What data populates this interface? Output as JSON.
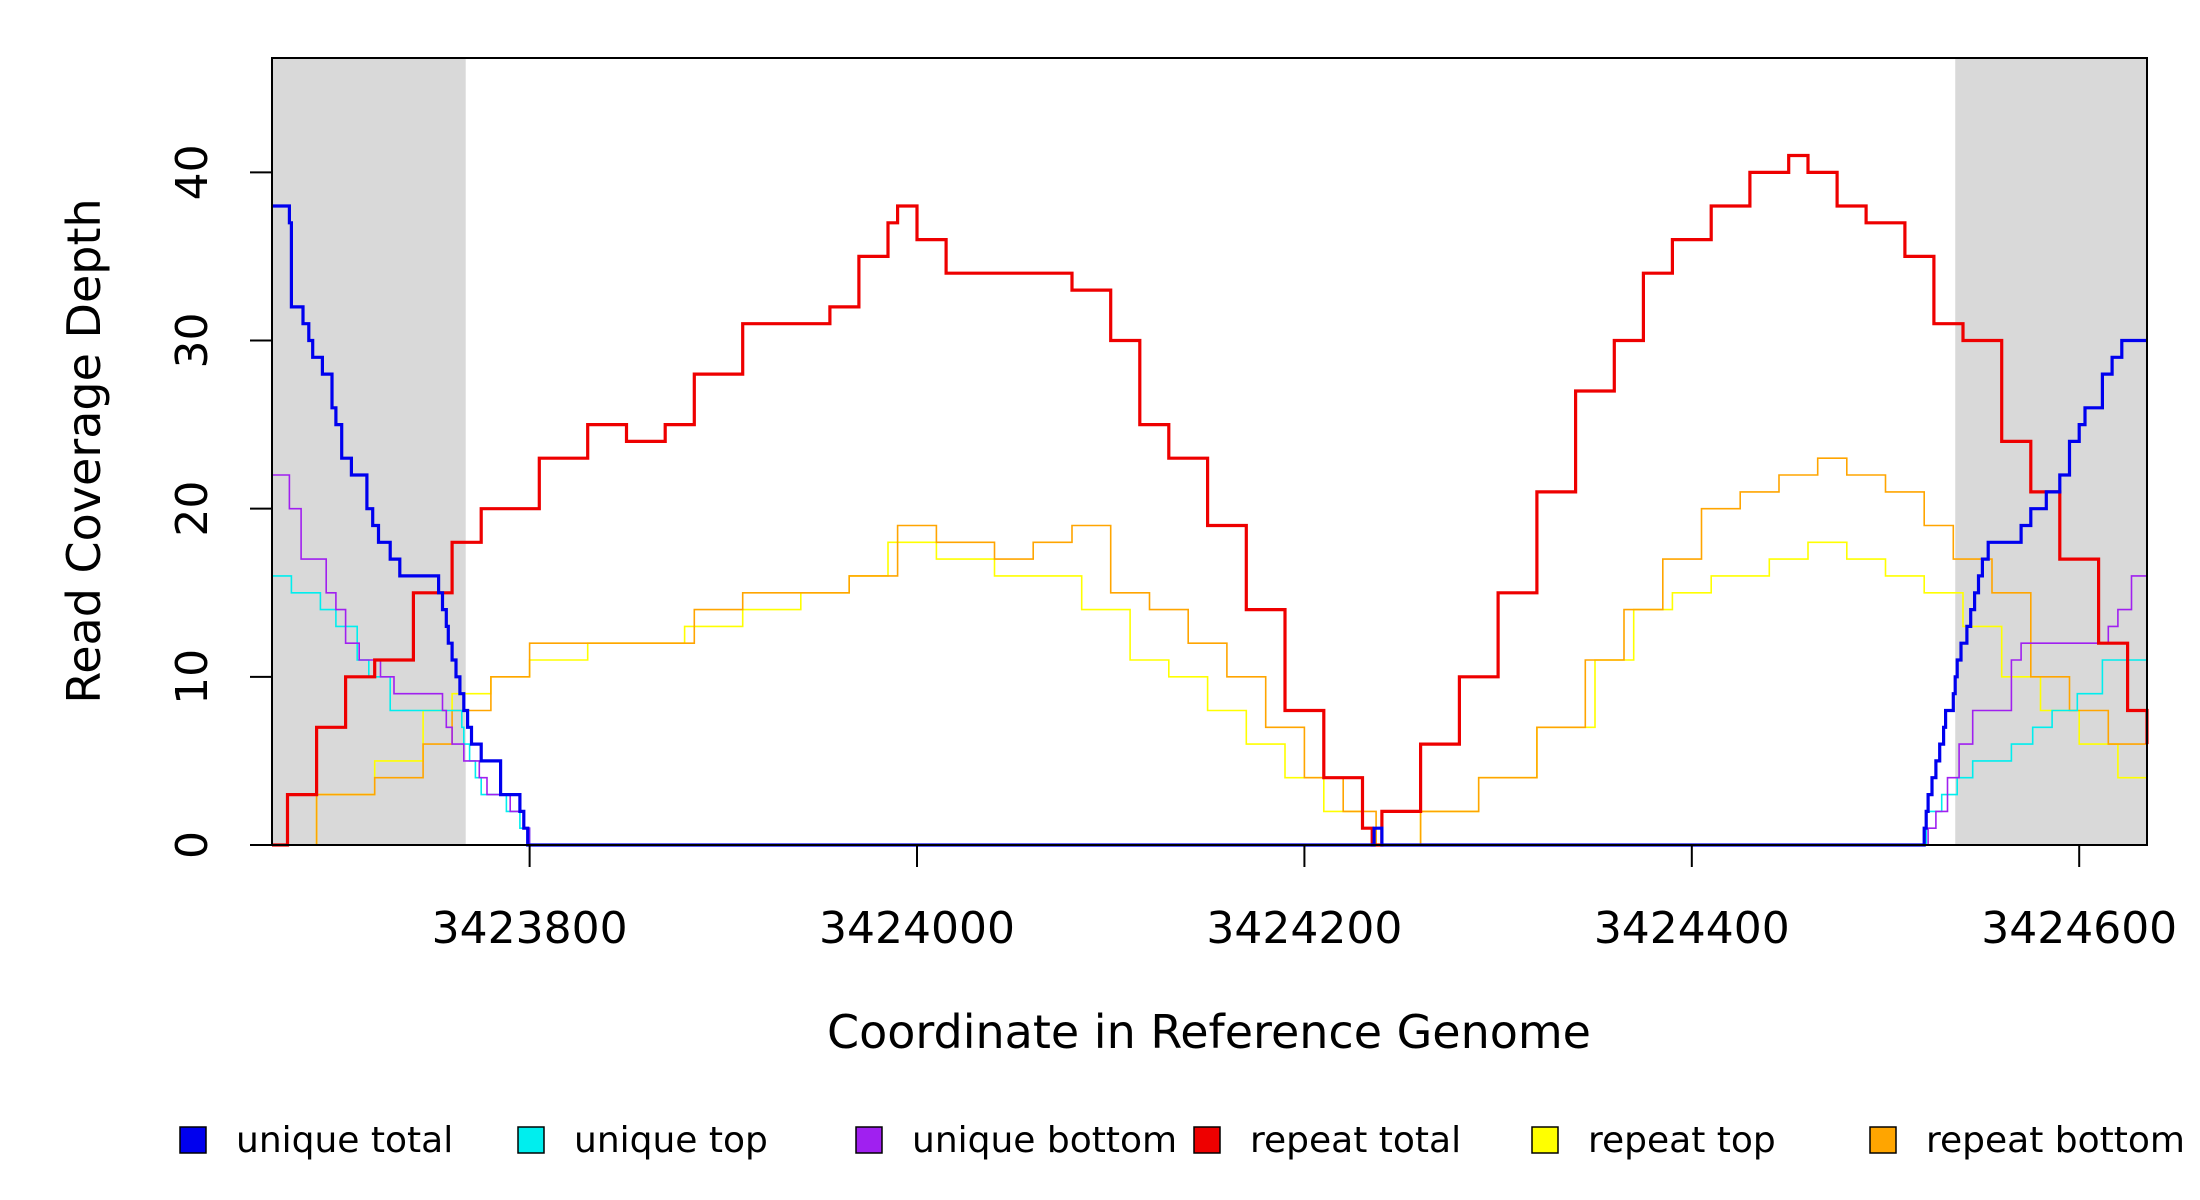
{
  "chart_data": {
    "type": "line",
    "title": "",
    "xlabel": "Coordinate in Reference Genome",
    "ylabel": "Read Coverage Depth",
    "xlim": [
      3423667,
      3424635
    ],
    "ylim": [
      0,
      46.8
    ],
    "xticks": [
      3423800,
      3424000,
      3424200,
      3424400,
      3424600
    ],
    "yticks": [
      0,
      10,
      20,
      30,
      40
    ],
    "shaded_regions": [
      [
        3423667,
        3423767
      ],
      [
        3424536,
        3424635
      ]
    ],
    "shade_color": "#d9d9d9",
    "grid": false,
    "legend_position": "bottom",
    "series": [
      {
        "name": "unique total",
        "color": "#0000ee",
        "x": [
          3423667,
          3423676,
          3423677,
          3423683,
          3423686,
          3423688,
          3423693,
          3423698,
          3423700,
          3423703,
          3423708,
          3423716,
          3423719,
          3423722,
          3423728,
          3423733,
          3423750,
          3423753,
          3423755,
          3423757,
          3423758,
          3423760,
          3423762,
          3423764,
          3423766,
          3423768,
          3423770,
          3423775,
          3423785,
          3423795,
          3423797,
          3423799,
          3424085,
          3424236,
          3424240,
          3424507,
          3424520,
          3424521,
          3424522,
          3424524,
          3424526,
          3424528,
          3424530,
          3424531,
          3424535,
          3424536,
          3424537,
          3424539,
          3424542,
          3424544,
          3424546,
          3424548,
          3424550,
          3424553,
          3424555,
          3424558,
          3424560,
          3424563,
          3424570,
          3424575,
          3424583,
          3424590,
          3424595,
          3424600,
          3424603,
          3424612,
          3424617,
          3424622,
          3424625,
          3424627,
          3424635
        ],
        "y": [
          38,
          37,
          32,
          31,
          30,
          29,
          28,
          26,
          25,
          23,
          22,
          20,
          19,
          18,
          17,
          16,
          16,
          15,
          14,
          13,
          12,
          11,
          10,
          9,
          8,
          7,
          6,
          5,
          3,
          2,
          1,
          0,
          0,
          1,
          0,
          0,
          1,
          2,
          3,
          4,
          5,
          6,
          7,
          8,
          9,
          10,
          11,
          12,
          13,
          14,
          15,
          16,
          17,
          18,
          18,
          18,
          18,
          18,
          19,
          20,
          21,
          22,
          24,
          25,
          26,
          28,
          29,
          30,
          30,
          30,
          30
        ]
      },
      {
        "name": "unique top",
        "color": "#00eeee",
        "x": [
          3423667,
          3423677,
          3423692,
          3423700,
          3423711,
          3423717,
          3423728,
          3423750,
          3423765,
          3423766,
          3423769,
          3423772,
          3423775,
          3423788,
          3423795,
          3423797,
          3423800,
          3424085,
          3424236,
          3424240,
          3424507,
          3424521,
          3424529,
          3424537,
          3424545,
          3424565,
          3424576,
          3424586,
          3424599,
          3424612,
          3424635
        ],
        "y": [
          16,
          15,
          14,
          13,
          11,
          10,
          8,
          8,
          7,
          6,
          5,
          4,
          3,
          2,
          1,
          1,
          0,
          0,
          1,
          0,
          0,
          2,
          3,
          4,
          5,
          6,
          7,
          8,
          9,
          11,
          12
        ]
      },
      {
        "name": "unique bottom",
        "color": "#a020f0",
        "x": [
          3423667,
          3423676,
          3423682,
          3423695,
          3423700,
          3423705,
          3423712,
          3423723,
          3423730,
          3423755,
          3423757,
          3423760,
          3423766,
          3423774,
          3423778,
          3423790,
          3423797,
          3423800,
          3424085,
          3424236,
          3424240,
          3424507,
          3424522,
          3424526,
          3424532,
          3424538,
          3424545,
          3424565,
          3424570,
          3424606,
          3424615,
          3424620,
          3424627,
          3424635
        ],
        "y": [
          22,
          20,
          17,
          15,
          14,
          12,
          11,
          10,
          9,
          8,
          7,
          6,
          5,
          4,
          3,
          2,
          1,
          0,
          0,
          1,
          0,
          0,
          1,
          2,
          4,
          6,
          8,
          11,
          12,
          12,
          13,
          14,
          16,
          17
        ]
      },
      {
        "name": "repeat total",
        "color": "#ee0000",
        "x": [
          3423667,
          3423675,
          3423690,
          3423705,
          3423720,
          3423740,
          3423760,
          3423775,
          3423790,
          3423805,
          3423830,
          3423850,
          3423870,
          3423885,
          3423910,
          3423930,
          3423955,
          3423970,
          3423985,
          3423990,
          3424000,
          3424015,
          3424040,
          3424060,
          3424080,
          3424100,
          3424115,
          3424130,
          3424150,
          3424170,
          3424190,
          3424210,
          3424230,
          3424235,
          3424240,
          3424260,
          3424280,
          3424300,
          3424320,
          3424340,
          3424360,
          3424375,
          3424390,
          3424410,
          3424430,
          3424450,
          3424460,
          3424475,
          3424490,
          3424510,
          3424525,
          3424540,
          3424560,
          3424575,
          3424590,
          3424610,
          3424625,
          3424635
        ],
        "y": [
          0,
          3,
          7,
          10,
          11,
          15,
          18,
          20,
          20,
          23,
          25,
          24,
          25,
          28,
          31,
          31,
          32,
          35,
          37,
          38,
          36,
          34,
          34,
          34,
          33,
          30,
          25,
          23,
          19,
          14,
          8,
          4,
          1,
          0,
          2,
          6,
          10,
          15,
          21,
          27,
          30,
          34,
          36,
          38,
          40,
          41,
          40,
          38,
          37,
          35,
          31,
          30,
          24,
          21,
          17,
          12,
          8,
          6
        ]
      },
      {
        "name": "repeat top",
        "color": "#ffff00",
        "x": [
          3423667,
          3423690,
          3423720,
          3423745,
          3423760,
          3423780,
          3423800,
          3423830,
          3423860,
          3423880,
          3423910,
          3423940,
          3423965,
          3423985,
          3424010,
          3424040,
          3424060,
          3424085,
          3424110,
          3424130,
          3424150,
          3424170,
          3424190,
          3424210,
          3424230,
          3424237,
          3424260,
          3424290,
          3424320,
          3424350,
          3424370,
          3424390,
          3424410,
          3424440,
          3424460,
          3424480,
          3424500,
          3424520,
          3424540,
          3424560,
          3424580,
          3424600,
          3424620,
          3424635
        ],
        "y": [
          0,
          3,
          5,
          8,
          9,
          10,
          11,
          12,
          12,
          13,
          14,
          15,
          16,
          18,
          17,
          16,
          16,
          14,
          11,
          10,
          8,
          6,
          4,
          2,
          1,
          0,
          2,
          4,
          7,
          11,
          14,
          15,
          16,
          17,
          18,
          17,
          16,
          15,
          13,
          10,
          8,
          6,
          4,
          3
        ]
      },
      {
        "name": "repeat bottom",
        "color": "#ffa500",
        "x": [
          3423667,
          3423690,
          3423720,
          3423745,
          3423760,
          3423780,
          3423800,
          3423830,
          3423860,
          3423885,
          3423910,
          3423940,
          3423965,
          3423990,
          3424010,
          3424040,
          3424060,
          3424080,
          3424100,
          3424120,
          3424140,
          3424160,
          3424180,
          3424200,
          3424220,
          3424237,
          3424260,
          3424290,
          3424320,
          3424345,
          3424365,
          3424385,
          3424405,
          3424425,
          3424445,
          3424465,
          3424480,
          3424500,
          3424520,
          3424535,
          3424555,
          3424575,
          3424595,
          3424615,
          3424635
        ],
        "y": [
          0,
          3,
          4,
          6,
          8,
          10,
          12,
          12,
          12,
          14,
          15,
          15,
          16,
          19,
          18,
          17,
          18,
          19,
          15,
          14,
          12,
          10,
          7,
          4,
          2,
          0,
          2,
          4,
          7,
          11,
          14,
          17,
          20,
          21,
          22,
          23,
          22,
          21,
          19,
          17,
          15,
          10,
          8,
          6,
          4
        ]
      }
    ]
  }
}
